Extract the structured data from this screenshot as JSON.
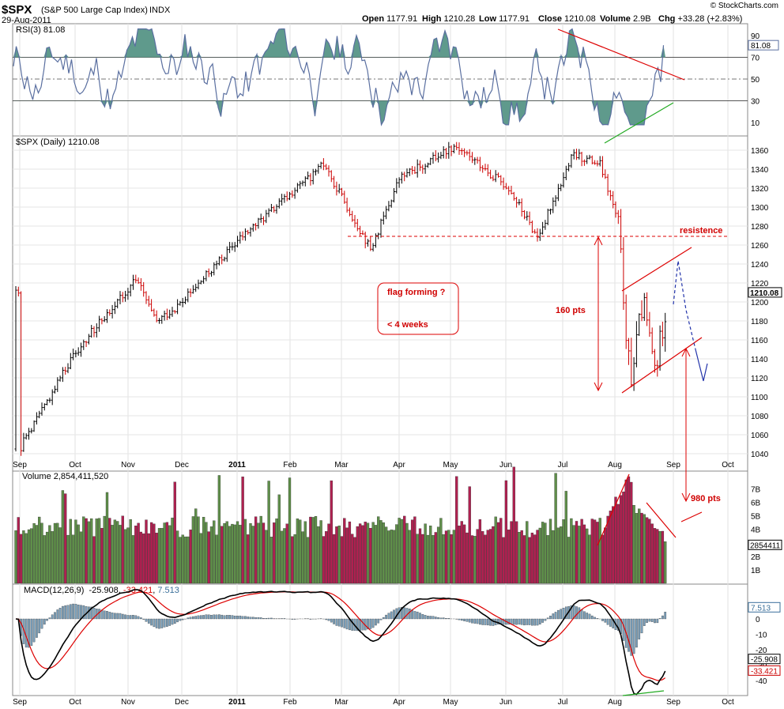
{
  "header": {
    "symbol": "$SPX",
    "name": "(S&P 500 Large Cap Index)",
    "exchange": "INDX",
    "date": "29-Aug-2011",
    "credit": "© StockCharts.com",
    "quote": [
      {
        "label": "Open",
        "value": "1177.91"
      },
      {
        "label": "High",
        "value": "1210.28"
      },
      {
        "label": "Low",
        "value": "1177.91"
      },
      {
        "label": "Close",
        "value": "1210.08"
      },
      {
        "label": "Volume",
        "value": "2.9B"
      },
      {
        "label": "Chg",
        "value": "+33.28 (+2.83%)"
      }
    ]
  },
  "panels": {
    "rsi": {
      "label": "RSI(3) 81.08",
      "last_value": "81.08",
      "ticks": [
        "90",
        "70",
        "50",
        "30",
        "10"
      ]
    },
    "price": {
      "label": "$SPX (Daily) 1210.08",
      "last_value": "1210.08",
      "ticks": [
        "1360",
        "1340",
        "1320",
        "1300",
        "1280",
        "1260",
        "1240",
        "1220",
        "1200",
        "1180",
        "1160",
        "1140",
        "1120",
        "1100",
        "1080",
        "1060",
        "1040"
      ]
    },
    "volume": {
      "label": "Volume 2,854,411,520",
      "last_value": "2854411",
      "ticks": [
        "7B",
        "6B",
        "5B",
        "4B",
        "3B",
        "2B",
        "1B"
      ]
    },
    "macd": {
      "label_prefix": "MACD(12,26,9)",
      "macd_value": "-25.908",
      "signal_value": "-33.421",
      "hist_value": "7.513",
      "ticks": [
        "0",
        "-10",
        "-20",
        "-30",
        "-40"
      ]
    }
  },
  "xaxis": {
    "months": [
      "Sep",
      "Oct",
      "Nov",
      "Dec",
      "2011",
      "Feb",
      "Mar",
      "Apr",
      "May",
      "Jun",
      "Jul",
      "Aug",
      "Sep",
      "Oct"
    ]
  },
  "annotations": {
    "resistance": "resistence",
    "flag_line1": "flag forming ?",
    "flag_line2": "<  4 weeks",
    "move_label": "160 pts",
    "target_label": "980 pts"
  },
  "colors": {
    "up": "#000000",
    "down": "#cc0000",
    "rsi_fill": "#5f9a8c",
    "rsi_line": "#5a6fa0",
    "vol_up": "#5f8f4a",
    "vol_down": "#b02050",
    "macd": "#000000",
    "signal": "#dd0000",
    "hist": "#7a9fba",
    "annotation": "#dd0000",
    "projection": "#2233aa"
  },
  "chart_data": {
    "type": "line",
    "title": "$SPX (S&P 500 Large Cap Index) Daily",
    "x_range": [
      "2010-09",
      "2011-08-29"
    ],
    "series": [
      {
        "name": "$SPX (Daily)",
        "x": [
          "2010-09-01",
          "2010-10-01",
          "2010-11-05",
          "2010-11-16",
          "2010-12-01",
          "2011-01-01",
          "2011-02-18",
          "2011-03-16",
          "2011-04-01",
          "2011-05-02",
          "2011-06-01",
          "2011-06-17",
          "2011-07-07",
          "2011-07-22",
          "2011-08-01",
          "2011-08-08",
          "2011-08-15",
          "2011-08-22",
          "2011-08-29"
        ],
        "values": [
          1045,
          1145,
          1225,
          1178,
          1200,
          1265,
          1345,
          1255,
          1330,
          1365,
          1320,
          1268,
          1355,
          1345,
          1285,
          1115,
          1200,
          1125,
          1210
        ]
      },
      {
        "name": "RSI(3)",
        "last": 81.08
      },
      {
        "name": "MACD(12,26,9)",
        "last": -25.908
      },
      {
        "name": "Signal",
        "last": -33.421
      },
      {
        "name": "Histogram",
        "last": 7.513
      }
    ],
    "ylim": [
      1030,
      1370
    ],
    "resistance_level": 1260
  }
}
